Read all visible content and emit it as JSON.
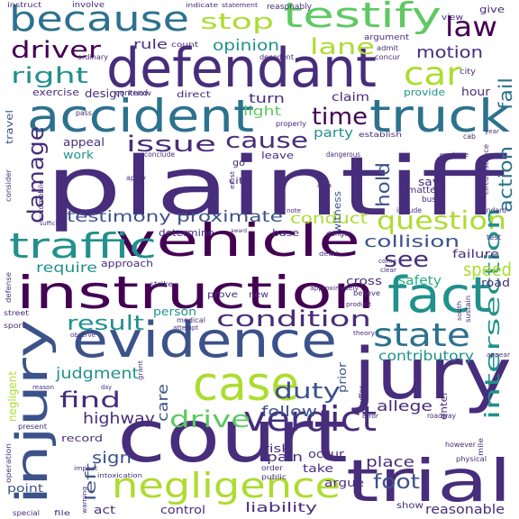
{
  "palette": {
    "background": "#ffffff",
    "purple": "#440154",
    "indigo": "#472d7b",
    "blue": "#3b528b",
    "steel": "#2c728e",
    "teal": "#21918c",
    "green": "#28ae80",
    "lime": "#5ec962",
    "yellowgreen": "#addc30",
    "yellow": "#fde725"
  },
  "words": {
    "plaintiff": "plaintiff",
    "defendant": "defendant",
    "court": "court",
    "jury": "jury",
    "trial": "trial",
    "evidence": "evidence",
    "instruction": "instruction",
    "vehicle": "vehicle",
    "accident": "accident",
    "truck": "truck",
    "injury": "injury",
    "fact": "fact",
    "case": "case",
    "negligence": "negligence",
    "verdict": "verdict",
    "because": "because",
    "testify": "testify",
    "traffic": "traffic",
    "car": "car",
    "state": "state",
    "question": "question",
    "condition": "condition",
    "intersection": "intersection",
    "law": "law",
    "driver": "driver",
    "right": "right",
    "stop": "stop",
    "lane": "lane",
    "time": "time",
    "damage": "damage",
    "issue": "issue",
    "cause": "cause",
    "drive": "drive",
    "duty": "duty",
    "find": "find",
    "result": "result",
    "see": "see",
    "collision": "collision",
    "testimony": "testimony",
    "proximate": "proximate",
    "motion": "motion",
    "opinion": "opinion",
    "fail": "fail",
    "action": "action",
    "hold": "hold",
    "speed": "speed",
    "conduct": "conduct",
    "require": "require",
    "sign": "sign",
    "highway": "highway",
    "judgment": "judgment",
    "left": "left",
    "care": "care",
    "follow": "follow",
    "foot": "foot",
    "allege": "allege",
    "place": "place",
    "liability": "liability",
    "pain": "pain",
    "contributory": "contributory",
    "safety": "safety",
    "reasonable": "reasonable",
    "turn": "turn",
    "claim": "claim",
    "light": "light",
    "party": "party",
    "rule": "rule",
    "design": "design",
    "appeal": "appeal",
    "work": "work",
    "exercise": "exercise",
    "travel": "travel",
    "point": "point",
    "record": "record",
    "act": "act",
    "control": "control",
    "risk": "risk",
    "take": "take",
    "cross": "cross",
    "failure": "failure",
    "road": "road",
    "person": "person",
    "prior": "prior",
    "determine": "determine",
    "approach": "approach",
    "base": "base",
    "hour": "hour",
    "provide": "provide",
    "give": "give",
    "argument": "argument",
    "witness": "witness",
    "matter": "matter",
    "section": "section",
    "say": "say",
    "enter": "enter",
    "occur": "occur",
    "argue": "argue",
    "show": "show",
    "negligent": "negligent",
    "leave": "leave",
    "go": "go",
    "new": "new",
    "prove": "prove",
    "cite": "cite",
    "count": "count",
    "know": "know",
    "direct": "direct",
    "view": "view",
    "evidence_small": "evidence",
    "instruct": "instruct",
    "involve": "involve",
    "contend": "contend",
    "reasonably": "reasonably",
    "ordinary": "ordinary",
    "decedent": "decedent",
    "concur": "concur",
    "city": "city",
    "admit": "admit",
    "pass": "pass",
    "consider": "consider",
    "defense": "defense",
    "street": "street",
    "sport": "sport",
    "present": "present",
    "operation": "operation",
    "special": "special",
    "file": "file",
    "order": "order",
    "public": "public",
    "medical": "medical",
    "death": "death",
    "danger": "danger",
    "dangerous": "dangerous",
    "employee": "employee",
    "include": "include",
    "standard": "standard",
    "circumstance": "circumstance",
    "test": "test",
    "sustain": "sustain",
    "physical": "physical",
    "however": "however",
    "mile": "mile",
    "roadway": "roadway",
    "establish": "establish",
    "properly": "properly",
    "apply": "apply",
    "automobile": "automobile",
    "sufficient": "sufficient",
    "conclude": "conclude",
    "award": "award",
    "note": "note",
    "area": "area",
    "exist": "exist",
    "bus": "bus",
    "clear": "clear",
    "south": "south",
    "approximately": "approximately",
    "product": "product",
    "theory": "theory",
    "appear": "appear",
    "impact": "impact",
    "intoxication": "intoxication",
    "warning": "warning",
    "strike": "strike",
    "attempt": "attempt",
    "observe": "observe",
    "reason": "reason",
    "suffer": "suffer",
    "error": "error",
    "statement": "statement",
    "indicate": "indicate",
    "cab": "cab",
    "year": "year",
    "come": "come",
    "believe": "believe",
    "day": "day",
    "grant": "grant"
  }
}
